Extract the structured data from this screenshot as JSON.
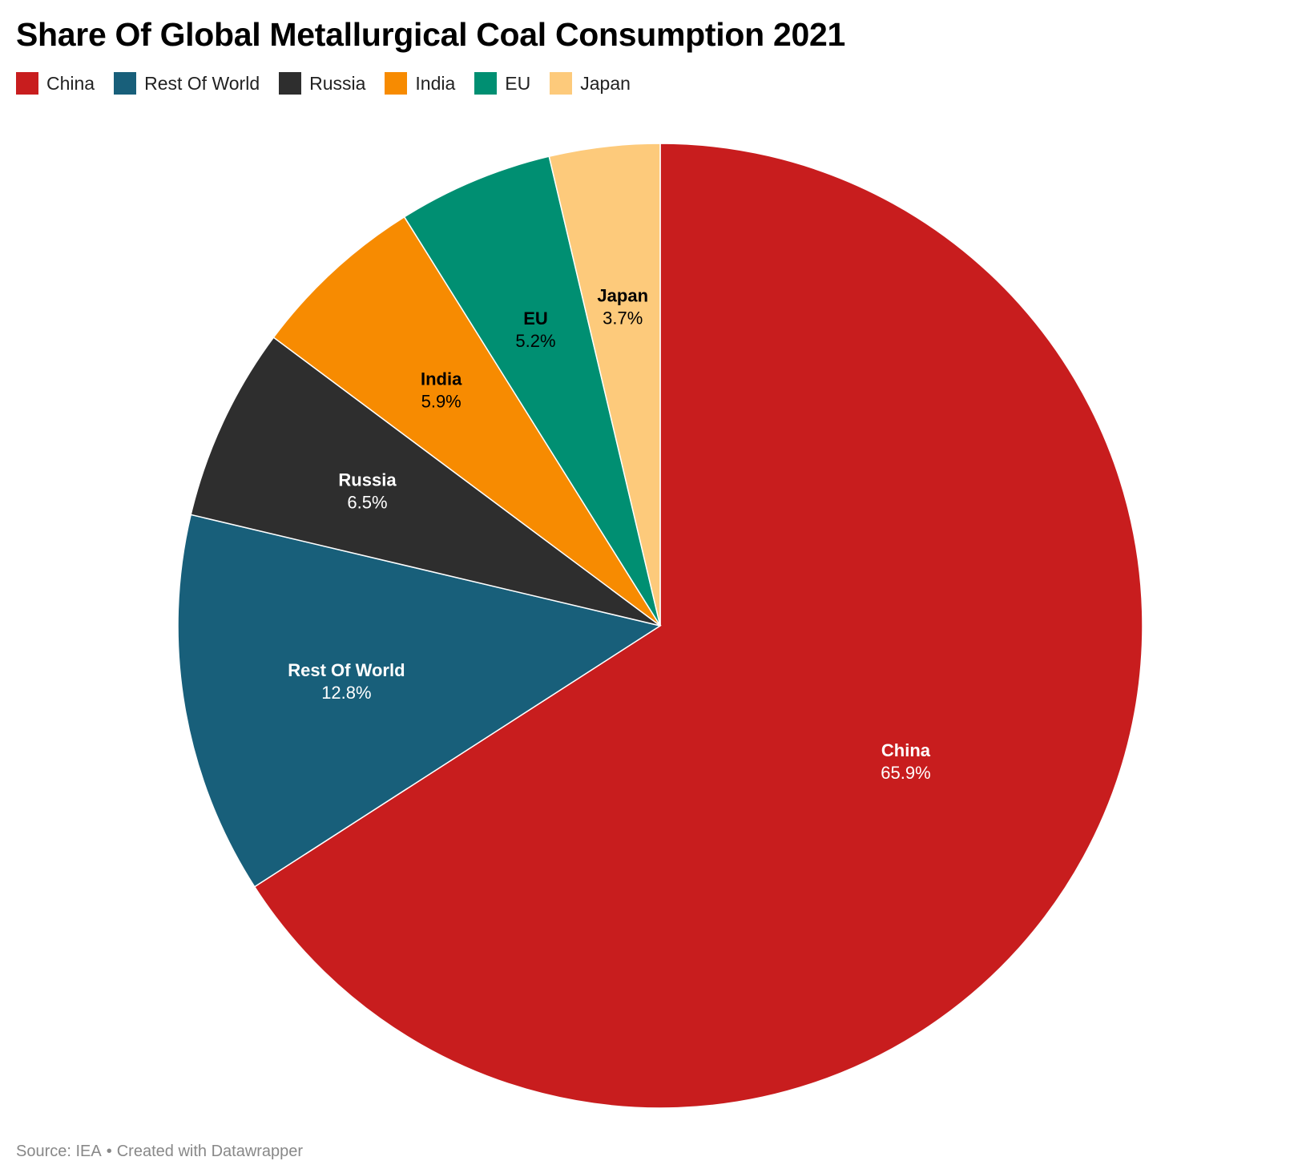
{
  "title": "Share Of Global Metallurgical Coal Consumption 2021",
  "footer": {
    "source": "Source: IEA",
    "separator": "•",
    "credit": "Created with Datawrapper"
  },
  "colors": {
    "China": "#c81d1e",
    "Rest Of World": "#185f7a",
    "Russia": "#2e2e2e",
    "India": "#f78b01",
    "EU": "#008f72",
    "Japan": "#fdca7b"
  },
  "chart_data": {
    "type": "pie",
    "title": "Share Of Global Metallurgical Coal Consumption 2021",
    "legend_position": "top-left",
    "unit": "%",
    "slices": [
      {
        "label": "China",
        "value": 65.9,
        "display": "65.9%",
        "color": "#c81d1e",
        "text_color": "#ffffff"
      },
      {
        "label": "Rest Of World",
        "value": 12.8,
        "display": "12.8%",
        "color": "#185f7a",
        "text_color": "#ffffff"
      },
      {
        "label": "Russia",
        "value": 6.5,
        "display": "6.5%",
        "color": "#2e2e2e",
        "text_color": "#ffffff"
      },
      {
        "label": "India",
        "value": 5.9,
        "display": "5.9%",
        "color": "#f78b01",
        "text_color": "#000000"
      },
      {
        "label": "EU",
        "value": 5.2,
        "display": "5.2%",
        "color": "#008f72",
        "text_color": "#000000"
      },
      {
        "label": "Japan",
        "value": 3.7,
        "display": "3.7%",
        "color": "#fdca7b",
        "text_color": "#000000"
      }
    ]
  }
}
